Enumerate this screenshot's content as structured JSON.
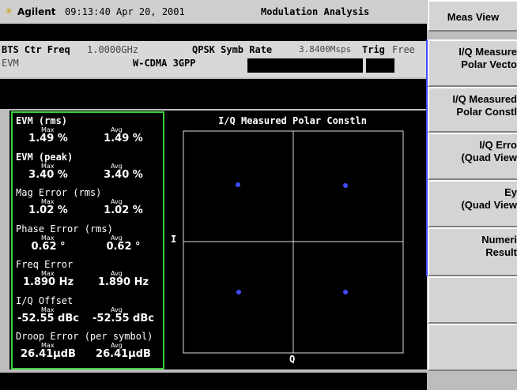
{
  "header": {
    "brand": "Agilent",
    "time": "09:13:40 Apr 20, 2001",
    "mode": "Modulation Analysis"
  },
  "info": {
    "freq_label": "BTS Ctr Freq",
    "freq_value": "1.0000GHz",
    "rate_label": "QPSK Symb Rate",
    "rate_value": "3.8400Msps",
    "trig_label": "Trig",
    "trig_value": "Free",
    "meas": "EVM",
    "standard": "W-CDMA 3GPP"
  },
  "metrics": [
    {
      "name": "EVM (rms)",
      "max_label": "Max",
      "avg_label": "Avg",
      "max": "1.49 %",
      "avg": "1.49 %"
    },
    {
      "name": "EVM (peak)",
      "max_label": "Max",
      "avg_label": "Avg",
      "max": "3.40 %",
      "avg": "3.40 %"
    },
    {
      "name": "Mag Error (rms)",
      "max_label": "Max",
      "avg_label": "Avg",
      "max": "1.02 %",
      "avg": "1.02 %"
    },
    {
      "name": "Phase Error (rms)",
      "max_label": "Max",
      "avg_label": "Avg",
      "max": "0.62 °",
      "avg": "0.62 °"
    },
    {
      "name": "Freq Error",
      "max_label": "Max",
      "avg_label": "Avg",
      "max": "1.890 Hz",
      "avg": "1.890 Hz"
    },
    {
      "name": "I/Q Offset",
      "max_label": "Max",
      "avg_label": "Avg",
      "max": "-52.55 dBc",
      "avg": "-52.55 dBc"
    },
    {
      "name": "Droop Error (per symbol)",
      "max_label": "Max",
      "avg_label": "Avg",
      "max": "26.41µdB",
      "avg": "26.41µdB"
    }
  ],
  "plot": {
    "title": "I/Q Measured Polar Constln",
    "y_label": "I",
    "x_label": "Q"
  },
  "softkeys": [
    {
      "lines": [
        "Meas View"
      ]
    },
    {
      "lines": [
        "I/Q Measure",
        "Polar Vecto"
      ]
    },
    {
      "lines": [
        "I/Q Measured",
        "Polar Constl"
      ]
    },
    {
      "lines": [
        "I/Q Erro",
        "(Quad View"
      ]
    },
    {
      "lines": [
        "Ey",
        "(Quad View"
      ]
    },
    {
      "lines": [
        "Numeri",
        "Result"
      ]
    },
    {
      "lines": []
    },
    {
      "lines": []
    }
  ]
}
